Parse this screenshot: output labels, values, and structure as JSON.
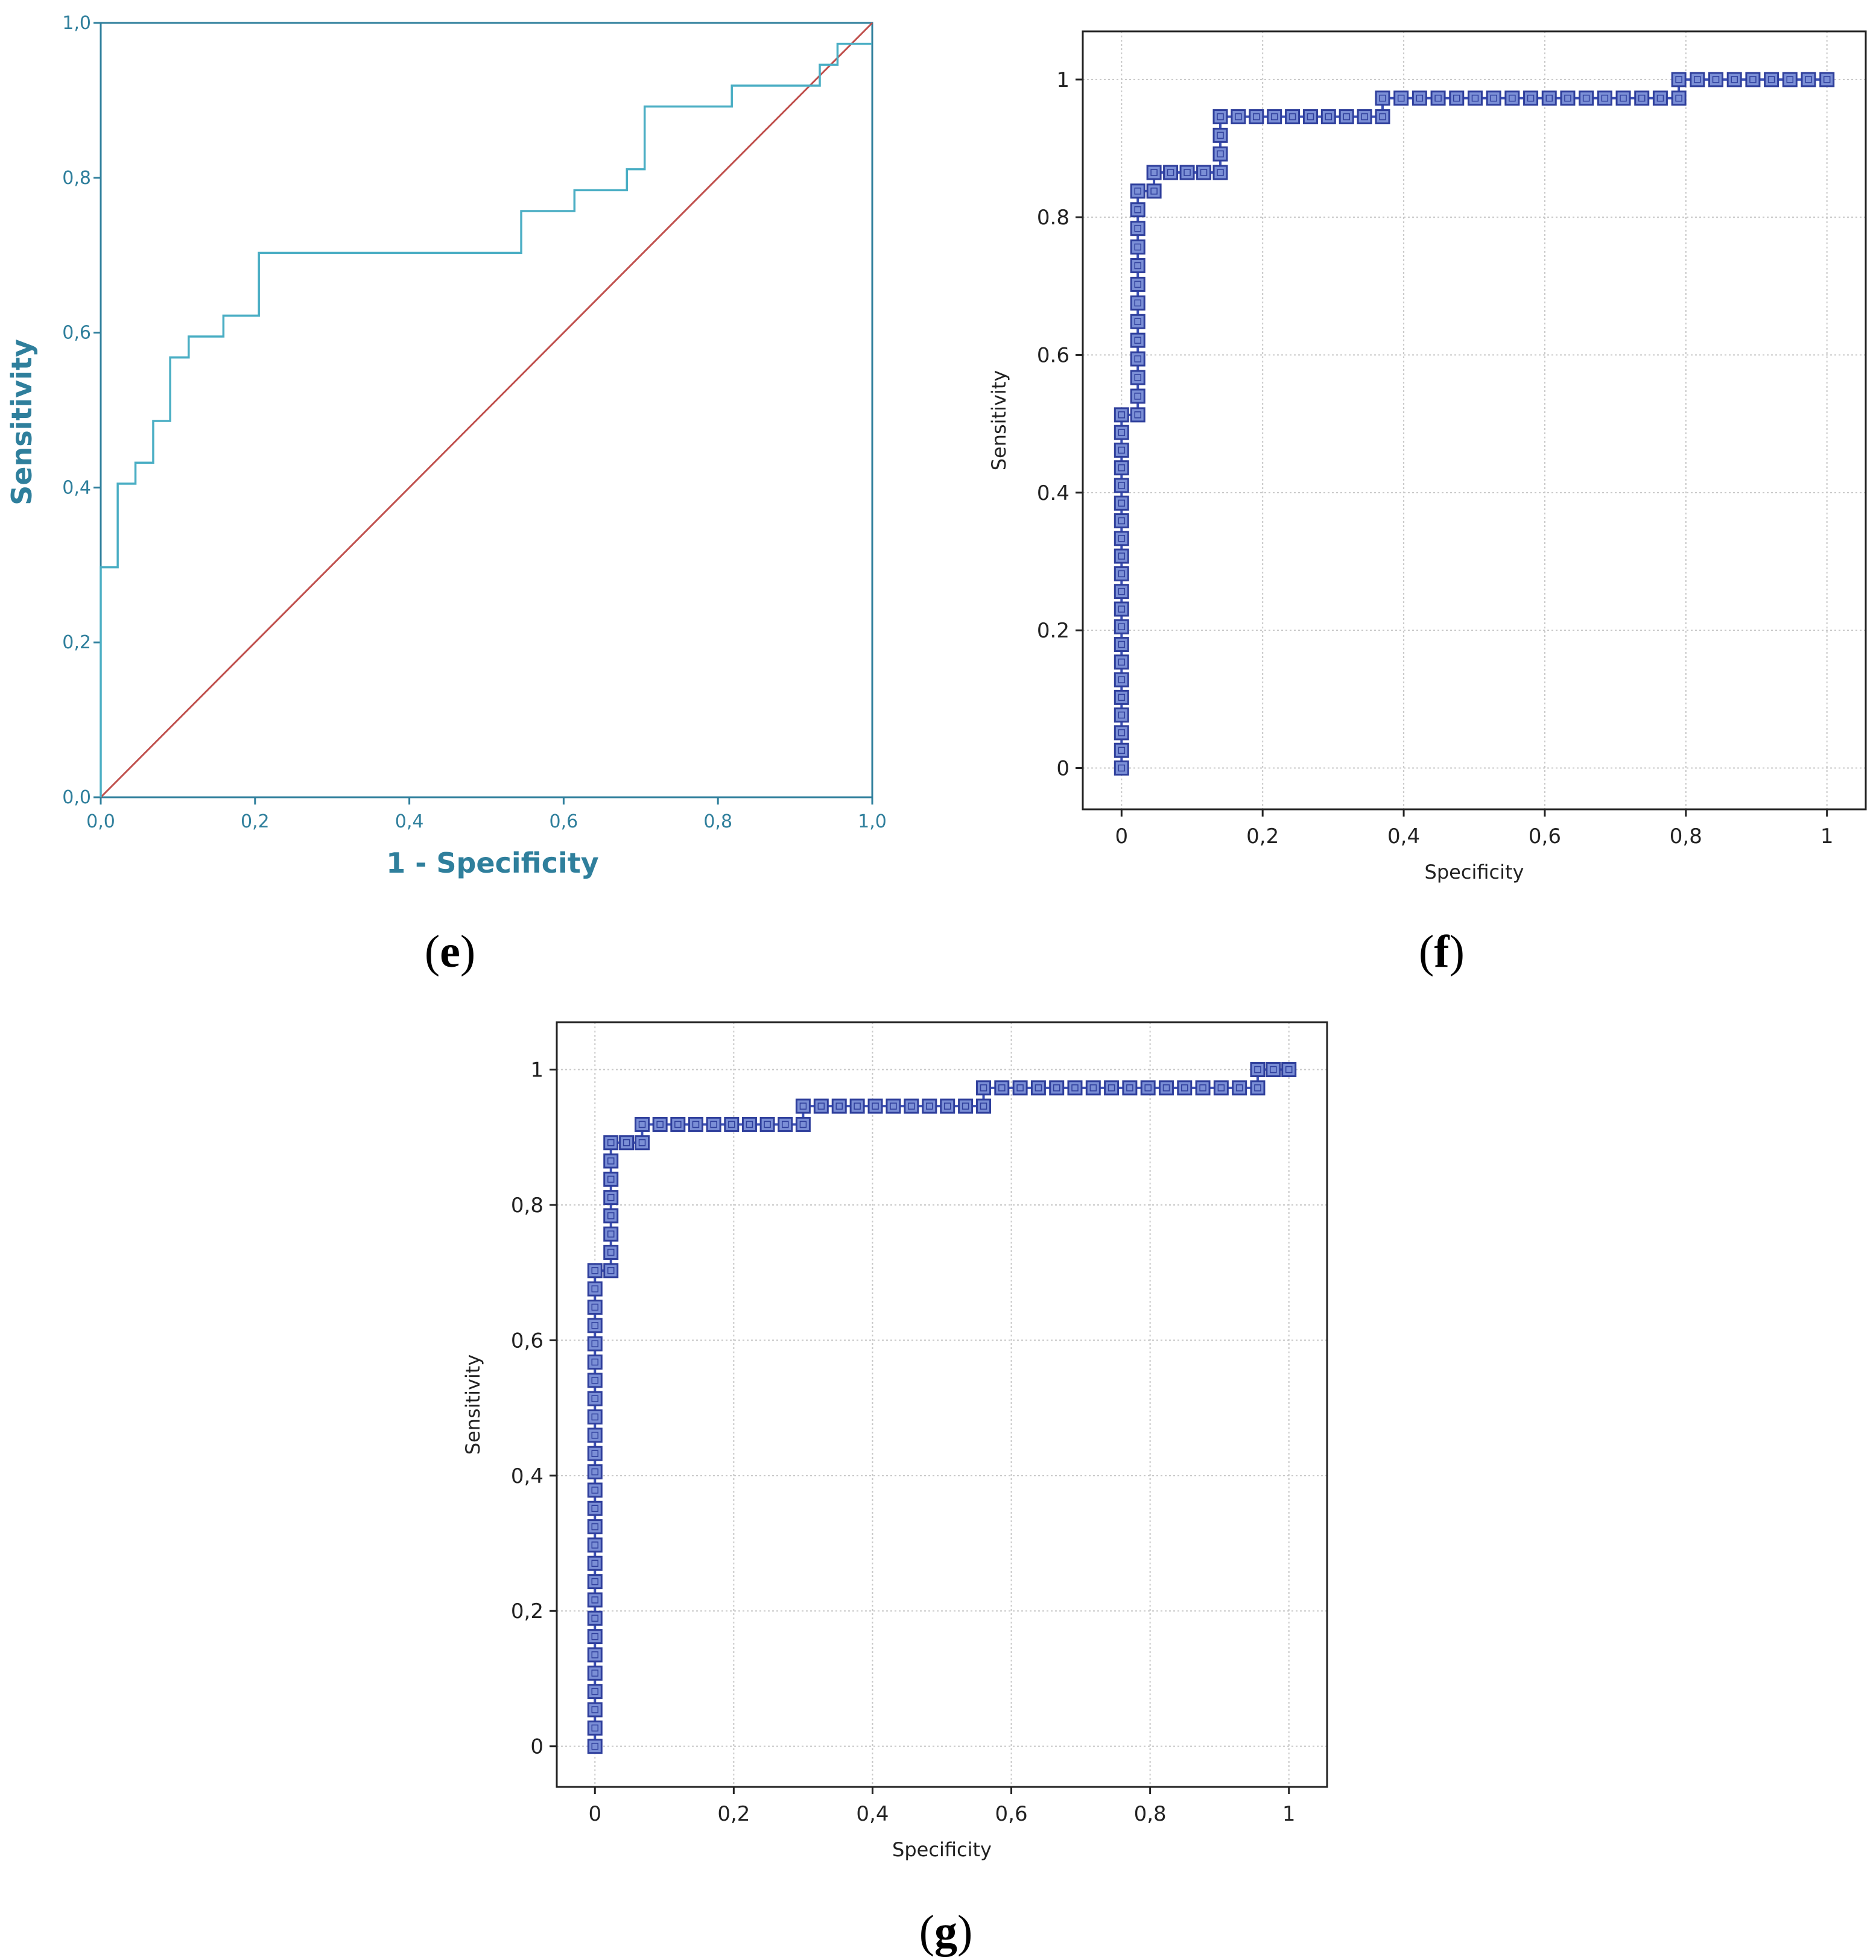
{
  "figure": {
    "labels": [
      "e",
      "f",
      "g"
    ]
  },
  "chart_data": [
    {
      "id": "e",
      "type": "line",
      "xlabel": "1 - Specificity",
      "ylabel": "Sensitivity",
      "xlim": [
        0,
        1
      ],
      "ylim": [
        0,
        1
      ],
      "xticks": [
        "0,0",
        "0,2",
        "0,4",
        "0,6",
        "0,8",
        "1,0"
      ],
      "yticks": [
        "0,0",
        "0,2",
        "0,4",
        "0,6",
        "0,8",
        "1,0"
      ],
      "grid": false,
      "colors": {
        "curve": "#4aaec4",
        "reference": "#c0504d",
        "label": "#2f7f9c",
        "frame": "#2f7f9c"
      },
      "series": [
        {
          "name": "ROC curve",
          "x": [
            0,
            0,
            0.022,
            0.022,
            0.045,
            0.045,
            0.068,
            0.068,
            0.09,
            0.09,
            0.114,
            0.114,
            0.159,
            0.159,
            0.205,
            0.205,
            0.545,
            0.545,
            0.614,
            0.614,
            0.682,
            0.682,
            0.705,
            0.705,
            0.818,
            0.818,
            0.932,
            0.932,
            0.955,
            0.955,
            1
          ],
          "y": [
            0,
            0.297,
            0.297,
            0.405,
            0.405,
            0.432,
            0.432,
            0.486,
            0.486,
            0.568,
            0.568,
            0.595,
            0.595,
            0.622,
            0.622,
            0.703,
            0.703,
            0.757,
            0.757,
            0.784,
            0.784,
            0.811,
            0.811,
            0.892,
            0.892,
            0.919,
            0.919,
            0.946,
            0.946,
            0.973,
            0.973
          ]
        },
        {
          "name": "Reference line",
          "x": [
            0,
            1
          ],
          "y": [
            0,
            1
          ]
        }
      ]
    },
    {
      "id": "f",
      "type": "line",
      "xlabel": "Specificity",
      "ylabel": "Sensitivity",
      "xlim": [
        -0.055,
        1.055
      ],
      "ylim": [
        -0.06,
        1.07
      ],
      "xticks": [
        "0",
        "0,2",
        "0,4",
        "0,6",
        "0,8",
        "1"
      ],
      "yticks": [
        "0",
        "0.2",
        "0.4",
        "0.6",
        "0.8",
        "1"
      ],
      "grid": true,
      "colors": {
        "curve": "#3c50b4",
        "marker_fill": "#7b8fd6",
        "marker_edge": "#2f3f9c"
      },
      "series": [
        {
          "name": "ROC",
          "x": [
            0,
            0,
            0.023,
            0.023,
            0.046,
            0.046,
            0.14,
            0.14,
            0.37,
            0.37,
            0.79,
            0.79,
            1.0
          ],
          "y": [
            0,
            0.513,
            0.513,
            0.838,
            0.838,
            0.865,
            0.865,
            0.946,
            0.946,
            0.973,
            0.973,
            1.0,
            1.0
          ]
        }
      ]
    },
    {
      "id": "g",
      "type": "line",
      "xlabel": "Specificity",
      "ylabel": "Sensitivity",
      "xlim": [
        -0.055,
        1.055
      ],
      "ylim": [
        -0.06,
        1.07
      ],
      "xticks": [
        "0",
        "0,2",
        "0,4",
        "0,6",
        "0,8",
        "1"
      ],
      "yticks": [
        "0",
        "0,2",
        "0,4",
        "0,6",
        "0,8",
        "1"
      ],
      "grid": true,
      "colors": {
        "curve": "#3c50b4",
        "marker_fill": "#7b8fd6",
        "marker_edge": "#2f3f9c"
      },
      "series": [
        {
          "name": "ROC",
          "x": [
            0,
            0,
            0.023,
            0.023,
            0.068,
            0.068,
            0.3,
            0.3,
            0.56,
            0.56,
            0.955,
            0.955,
            1.0
          ],
          "y": [
            0,
            0.703,
            0.703,
            0.892,
            0.892,
            0.919,
            0.919,
            0.946,
            0.946,
            0.973,
            0.973,
            1.0,
            1.0
          ]
        }
      ]
    }
  ]
}
